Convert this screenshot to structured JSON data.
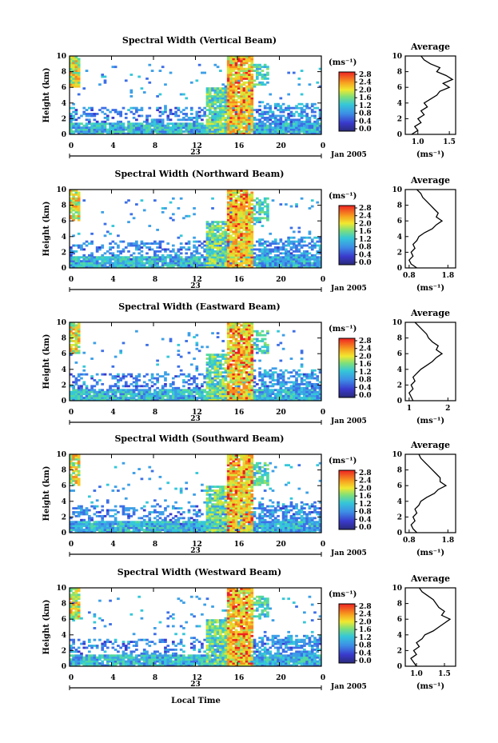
{
  "figure": {
    "x_title": "Local Time",
    "date_label": "Jan 2005",
    "day_label": "23"
  },
  "chart_data": [
    {
      "type": "heatmap",
      "title": "Spectral Width (Vertical Beam)",
      "ylabel": "Height (km)",
      "xlabel": "Local Time",
      "x_ticks": [
        "0",
        "4",
        "8",
        "12",
        "16",
        "20",
        "0"
      ],
      "y_ticks": [
        "0",
        "2",
        "4",
        "6",
        "8",
        "10"
      ],
      "xlim": [
        0,
        24
      ],
      "ylim": [
        0,
        10
      ],
      "colorbar": {
        "unit": "(ms⁻¹)",
        "range": [
          0,
          2.8
        ],
        "ticks": [
          "2.8",
          "2.4",
          "2.0",
          "1.6",
          "1.2",
          "0.8",
          "0.4",
          "0.0"
        ]
      },
      "average": {
        "title": "Average",
        "xlabel": "(ms⁻¹)",
        "x_ticks": [
          "1.0",
          "1.5"
        ],
        "xlim": [
          0.8,
          1.6
        ],
        "y_ticks": [
          "0",
          "2",
          "4",
          "6",
          "8",
          "10"
        ],
        "height_km": [
          0,
          0.5,
          1,
          1.5,
          2,
          2.5,
          3,
          3.5,
          4,
          4.5,
          5,
          5.5,
          6,
          6.5,
          7,
          7.5,
          8,
          8.5,
          9,
          9.5,
          10
        ],
        "value": [
          0.9,
          1.0,
          0.95,
          1.05,
          1.0,
          1.1,
          1.05,
          1.15,
          1.1,
          1.2,
          1.3,
          1.35,
          1.5,
          1.4,
          1.55,
          1.45,
          1.3,
          1.35,
          1.2,
          1.1,
          1.05
        ]
      }
    },
    {
      "type": "heatmap",
      "title": "Spectral Width (Northward Beam)",
      "ylabel": "Height (km)",
      "xlabel": "Local Time",
      "x_ticks": [
        "0",
        "4",
        "8",
        "12",
        "16",
        "20",
        "0"
      ],
      "y_ticks": [
        "0",
        "2",
        "4",
        "6",
        "8",
        "10"
      ],
      "xlim": [
        0,
        24
      ],
      "ylim": [
        0,
        10
      ],
      "colorbar": {
        "unit": "(ms⁻¹)",
        "range": [
          0,
          2.8
        ],
        "ticks": [
          "2.8",
          "2.4",
          "2.0",
          "1.6",
          "1.2",
          "0.8",
          "0.4",
          "0.0"
        ]
      },
      "average": {
        "title": "Average",
        "xlabel": "(ms⁻¹)",
        "x_ticks": [
          "0.8",
          "1.8"
        ],
        "xlim": [
          0.7,
          2.0
        ],
        "y_ticks": [
          "0",
          "2",
          "4",
          "6",
          "8",
          "10"
        ],
        "height_km": [
          0,
          0.5,
          1,
          1.5,
          2,
          2.5,
          3,
          3.5,
          4,
          4.5,
          5,
          5.5,
          6,
          6.5,
          7,
          7.5,
          8,
          8.5,
          9,
          9.5,
          10
        ],
        "value": [
          1.0,
          0.85,
          0.8,
          0.9,
          0.85,
          0.95,
          0.9,
          1.0,
          1.05,
          1.2,
          1.4,
          1.5,
          1.65,
          1.5,
          1.55,
          1.45,
          1.35,
          1.25,
          1.15,
          1.1,
          1.0
        ]
      }
    },
    {
      "type": "heatmap",
      "title": "Spectral Width (Eastward Beam)",
      "ylabel": "Height (km)",
      "xlabel": "Local Time",
      "x_ticks": [
        "0",
        "4",
        "8",
        "12",
        "16",
        "20",
        "0"
      ],
      "y_ticks": [
        "0",
        "2",
        "4",
        "6",
        "8",
        "10"
      ],
      "xlim": [
        0,
        24
      ],
      "ylim": [
        0,
        10
      ],
      "colorbar": {
        "unit": "(ms⁻¹)",
        "range": [
          0,
          2.8
        ],
        "ticks": [
          "2.8",
          "2.4",
          "2.0",
          "1.6",
          "1.2",
          "0.8",
          "0.4",
          "0.0"
        ]
      },
      "average": {
        "title": "Average",
        "xlabel": "(ms⁻¹)",
        "x_ticks": [
          "1",
          "2"
        ],
        "xlim": [
          0.9,
          2.2
        ],
        "y_ticks": [
          "0",
          "2",
          "4",
          "6",
          "8",
          "10"
        ],
        "height_km": [
          0,
          0.5,
          1,
          1.5,
          2,
          2.5,
          3,
          3.5,
          4,
          4.5,
          5,
          5.5,
          6,
          6.5,
          7,
          7.5,
          8,
          8.5,
          9,
          9.5,
          10
        ],
        "value": [
          1.1,
          1.05,
          1.0,
          1.1,
          1.05,
          1.15,
          1.1,
          1.2,
          1.3,
          1.45,
          1.6,
          1.7,
          1.85,
          1.7,
          1.75,
          1.6,
          1.5,
          1.45,
          1.35,
          1.25,
          1.15
        ]
      }
    },
    {
      "type": "heatmap",
      "title": "Spectral Width (Southward Beam)",
      "ylabel": "Height (km)",
      "xlabel": "Local Time",
      "x_ticks": [
        "0",
        "4",
        "8",
        "12",
        "16",
        "20",
        "0"
      ],
      "y_ticks": [
        "0",
        "2",
        "4",
        "6",
        "8",
        "10"
      ],
      "xlim": [
        0,
        24
      ],
      "ylim": [
        0,
        10
      ],
      "colorbar": {
        "unit": "(ms⁻¹)",
        "range": [
          0,
          2.8
        ],
        "ticks": [
          "2.8",
          "2.4",
          "2.0",
          "1.6",
          "1.2",
          "0.8",
          "0.4",
          "0.0"
        ]
      },
      "average": {
        "title": "Average",
        "xlabel": "(ms⁻¹)",
        "x_ticks": [
          "0.8",
          "1.8"
        ],
        "xlim": [
          0.7,
          2.0
        ],
        "y_ticks": [
          "0",
          "2",
          "4",
          "6",
          "8",
          "10"
        ],
        "height_km": [
          0,
          0.5,
          1,
          1.5,
          2,
          2.5,
          3,
          3.5,
          4,
          4.5,
          5,
          5.5,
          6,
          6.5,
          7,
          7.5,
          8,
          8.5,
          9,
          9.5,
          10
        ],
        "value": [
          1.0,
          0.9,
          0.85,
          0.95,
          0.9,
          1.0,
          0.95,
          1.05,
          1.1,
          1.25,
          1.45,
          1.55,
          1.75,
          1.6,
          1.6,
          1.5,
          1.4,
          1.3,
          1.2,
          1.1,
          1.05
        ]
      }
    },
    {
      "type": "heatmap",
      "title": "Spectral Width (Westward Beam)",
      "ylabel": "Height (km)",
      "xlabel": "Local Time",
      "x_ticks": [
        "0",
        "4",
        "8",
        "12",
        "16",
        "20",
        "0"
      ],
      "y_ticks": [
        "0",
        "2",
        "4",
        "6",
        "8",
        "10"
      ],
      "xlim": [
        0,
        24
      ],
      "ylim": [
        0,
        10
      ],
      "colorbar": {
        "unit": "(ms⁻¹)",
        "range": [
          0,
          2.8
        ],
        "ticks": [
          "2.8",
          "2.4",
          "2.0",
          "1.6",
          "1.2",
          "0.8",
          "0.4",
          "0.0"
        ]
      },
      "average": {
        "title": "Average",
        "xlabel": "(ms⁻¹)",
        "x_ticks": [
          "1.0",
          "1.5"
        ],
        "xlim": [
          0.8,
          1.7
        ],
        "y_ticks": [
          "0",
          "2",
          "4",
          "6",
          "8",
          "10"
        ],
        "height_km": [
          0,
          0.5,
          1,
          1.5,
          2,
          2.5,
          3,
          3.5,
          4,
          4.5,
          5,
          5.5,
          6,
          6.5,
          7,
          7.5,
          8,
          8.5,
          9,
          9.5,
          10
        ],
        "value": [
          1.0,
          0.95,
          0.9,
          1.0,
          0.95,
          1.05,
          1.0,
          1.1,
          1.15,
          1.3,
          1.4,
          1.5,
          1.6,
          1.45,
          1.5,
          1.4,
          1.35,
          1.3,
          1.2,
          1.1,
          1.05
        ]
      }
    }
  ]
}
